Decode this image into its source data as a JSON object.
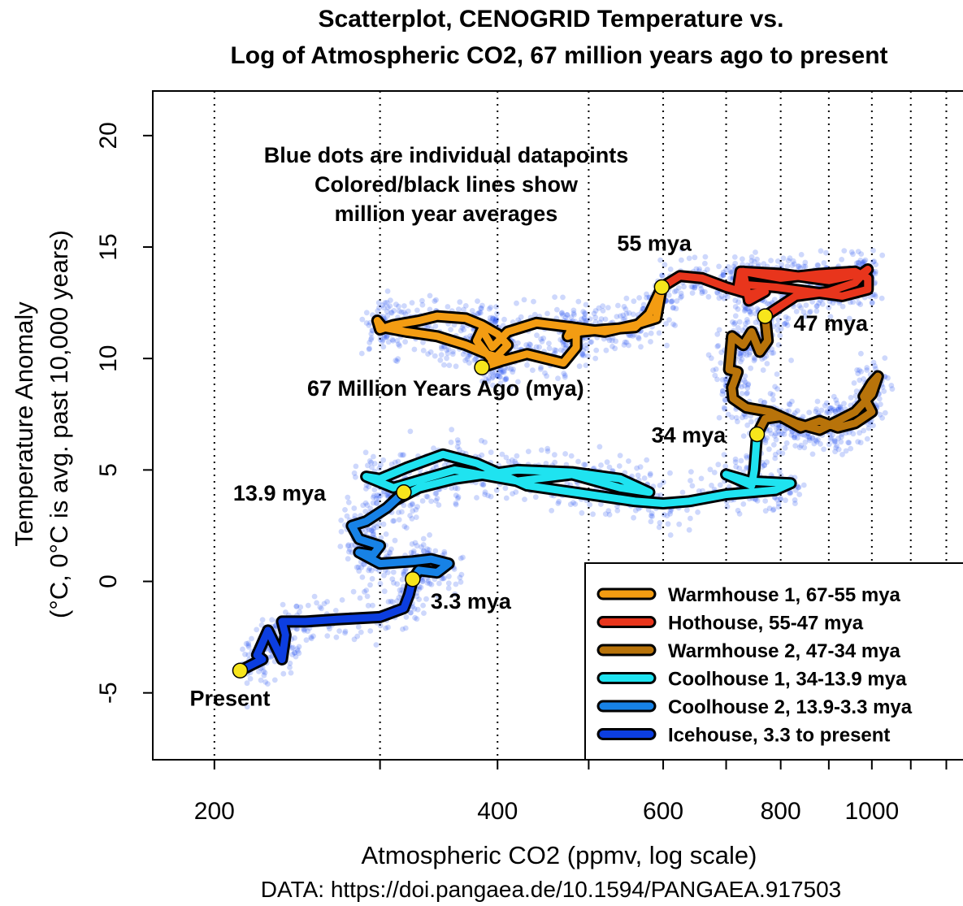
{
  "chart_data": {
    "type": "scatter",
    "title": [
      "Scatterplot, CENOGRID Temperature vs.",
      "Log of Atmospheric CO2, 67 million years ago to present"
    ],
    "xlabel": "Atmospheric CO2 (ppmv, log scale)",
    "ylabel": [
      "Temperature Anomaly",
      "(°C, 0°C is avg. past 10,000 years)"
    ],
    "source": "DATA: https://doi.pangaea.de/10.1594/PANGAEA.917503",
    "x_scale": "log",
    "xlim": [
      172,
      1250
    ],
    "ylim": [
      -8,
      22
    ],
    "x_ticks": [
      200,
      400,
      600,
      800,
      1000
    ],
    "y_ticks": [
      -5,
      0,
      5,
      10,
      15,
      20
    ],
    "vgrid_x": [
      200,
      300,
      400,
      500,
      600,
      700,
      800,
      900,
      1000,
      1100,
      1200
    ],
    "grid_style": "dotted vertical lines",
    "note": [
      "Blue dots are individual datapoints",
      "Colored/black lines show",
      "million year averages"
    ],
    "dots_color": "#1f4ff0",
    "legend_position": "bottom-right",
    "series": [
      {
        "name": "Warmhouse 1, 67-55 mya",
        "color": "#f39c12",
        "x": [
          385,
          405,
          430,
          470,
          485,
          485,
          480,
          475,
          490,
          520,
          560,
          580,
          598,
          590,
          560,
          520,
          480,
          440,
          410,
          395,
          385,
          380,
          395,
          410,
          400,
          385,
          370,
          345,
          330,
          310,
          300,
          298,
          302,
          320,
          345,
          370,
          390,
          405,
          398,
          385
        ],
        "y": [
          9.6,
          9.9,
          10.2,
          9.8,
          10.5,
          11.3,
          11.4,
          11.0,
          11.2,
          11.3,
          11.4,
          12.0,
          13.2,
          11.8,
          11.5,
          11.2,
          11.4,
          11.6,
          11.2,
          10.5,
          11.3,
          10.8,
          9.9,
          10.6,
          11.1,
          11.5,
          11.8,
          11.9,
          11.7,
          11.5,
          11.3,
          11.7,
          11.4,
          11.2,
          11.0,
          10.6,
          10.2,
          10.0,
          9.8,
          9.6
        ]
      },
      {
        "name": "Hothouse, 55-47 mya",
        "color": "#e8351c",
        "x": [
          598,
          625,
          660,
          700,
          740,
          770,
          740,
          730,
          800,
          880,
          960,
          990,
          990,
          930,
          860,
          790,
          740,
          720,
          725,
          800,
          900,
          975,
          990,
          960,
          900,
          830,
          770
        ],
        "y": [
          13.2,
          13.7,
          13.6,
          13.2,
          12.9,
          13.0,
          12.6,
          13.9,
          13.6,
          13.8,
          13.9,
          13.6,
          13.1,
          12.8,
          13.0,
          13.2,
          13.3,
          13.1,
          13.9,
          13.8,
          13.5,
          13.8,
          14.0,
          13.4,
          13.0,
          12.8,
          11.9
        ]
      },
      {
        "name": "Warmhouse 2, 47-34 mya",
        "color": "#b8730a",
        "x": [
          770,
          775,
          760,
          745,
          730,
          710,
          705,
          720,
          710,
          712,
          735,
          780,
          830,
          880,
          920,
          960,
          1000,
          1015,
          1000,
          980,
          1000,
          960,
          920,
          880,
          840,
          800,
          770,
          755
        ],
        "y": [
          11.9,
          10.8,
          10.3,
          11.2,
          10.6,
          11.0,
          9.5,
          9.4,
          8.7,
          8.2,
          7.8,
          7.6,
          7.1,
          6.8,
          7.2,
          7.6,
          8.4,
          9.2,
          8.9,
          8.3,
          7.6,
          7.1,
          6.9,
          7.2,
          6.9,
          7.4,
          7.3,
          6.6
        ]
      },
      {
        "name": "Coolhouse 1, 34-13.9 mya",
        "color": "#1fe3f0",
        "x": [
          755,
          750,
          745,
          700,
          740,
          820,
          790,
          700,
          640,
          600,
          560,
          500,
          430,
          380,
          350,
          320,
          300,
          290,
          310,
          360,
          420,
          480,
          540,
          580,
          540,
          480,
          420,
          360,
          330,
          310,
          318
        ],
        "y": [
          6.6,
          5.0,
          4.3,
          4.8,
          4.5,
          4.4,
          4.1,
          3.9,
          3.6,
          3.5,
          3.6,
          3.9,
          4.3,
          5.3,
          5.7,
          5.1,
          4.6,
          4.7,
          4.2,
          5.0,
          4.5,
          4.8,
          4.2,
          4.0,
          4.6,
          4.9,
          5.0,
          4.6,
          4.2,
          3.6,
          4.0
        ]
      },
      {
        "name": "Coolhouse 2, 13.9-3.3 mya",
        "color": "#1782e6",
        "x": [
          318,
          305,
          290,
          280,
          285,
          300,
          295,
          285,
          300,
          325,
          340,
          355,
          345,
          330,
          325
        ],
        "y": [
          4.0,
          3.3,
          2.7,
          2.5,
          1.9,
          1.6,
          1.2,
          1.3,
          0.8,
          0.9,
          1.0,
          0.8,
          0.4,
          0.5,
          0.1
        ]
      },
      {
        "name": "Icehouse, 3.3 to present",
        "color": "#0c3ee0",
        "x": [
          325,
          322,
          318,
          300,
          270,
          250,
          236,
          238,
          236,
          228,
          222,
          225,
          213
        ],
        "y": [
          0.1,
          -0.6,
          -1.2,
          -1.6,
          -1.7,
          -1.8,
          -1.8,
          -2.4,
          -3.5,
          -2.2,
          -3.3,
          -3.5,
          -4.0
        ]
      }
    ],
    "markers": [
      {
        "x": 385,
        "y": 9.6,
        "label": "67 Million Years Ago (mya)"
      },
      {
        "x": 598,
        "y": 13.2,
        "label": "55 mya"
      },
      {
        "x": 770,
        "y": 11.9,
        "label": "47 mya"
      },
      {
        "x": 755,
        "y": 6.6,
        "label": "34 mya"
      },
      {
        "x": 318,
        "y": 4.0,
        "label": "13.9 mya"
      },
      {
        "x": 325,
        "y": 0.1,
        "label": "3.3 mya"
      },
      {
        "x": 213,
        "y": -4.0,
        "label": "Present"
      }
    ]
  }
}
